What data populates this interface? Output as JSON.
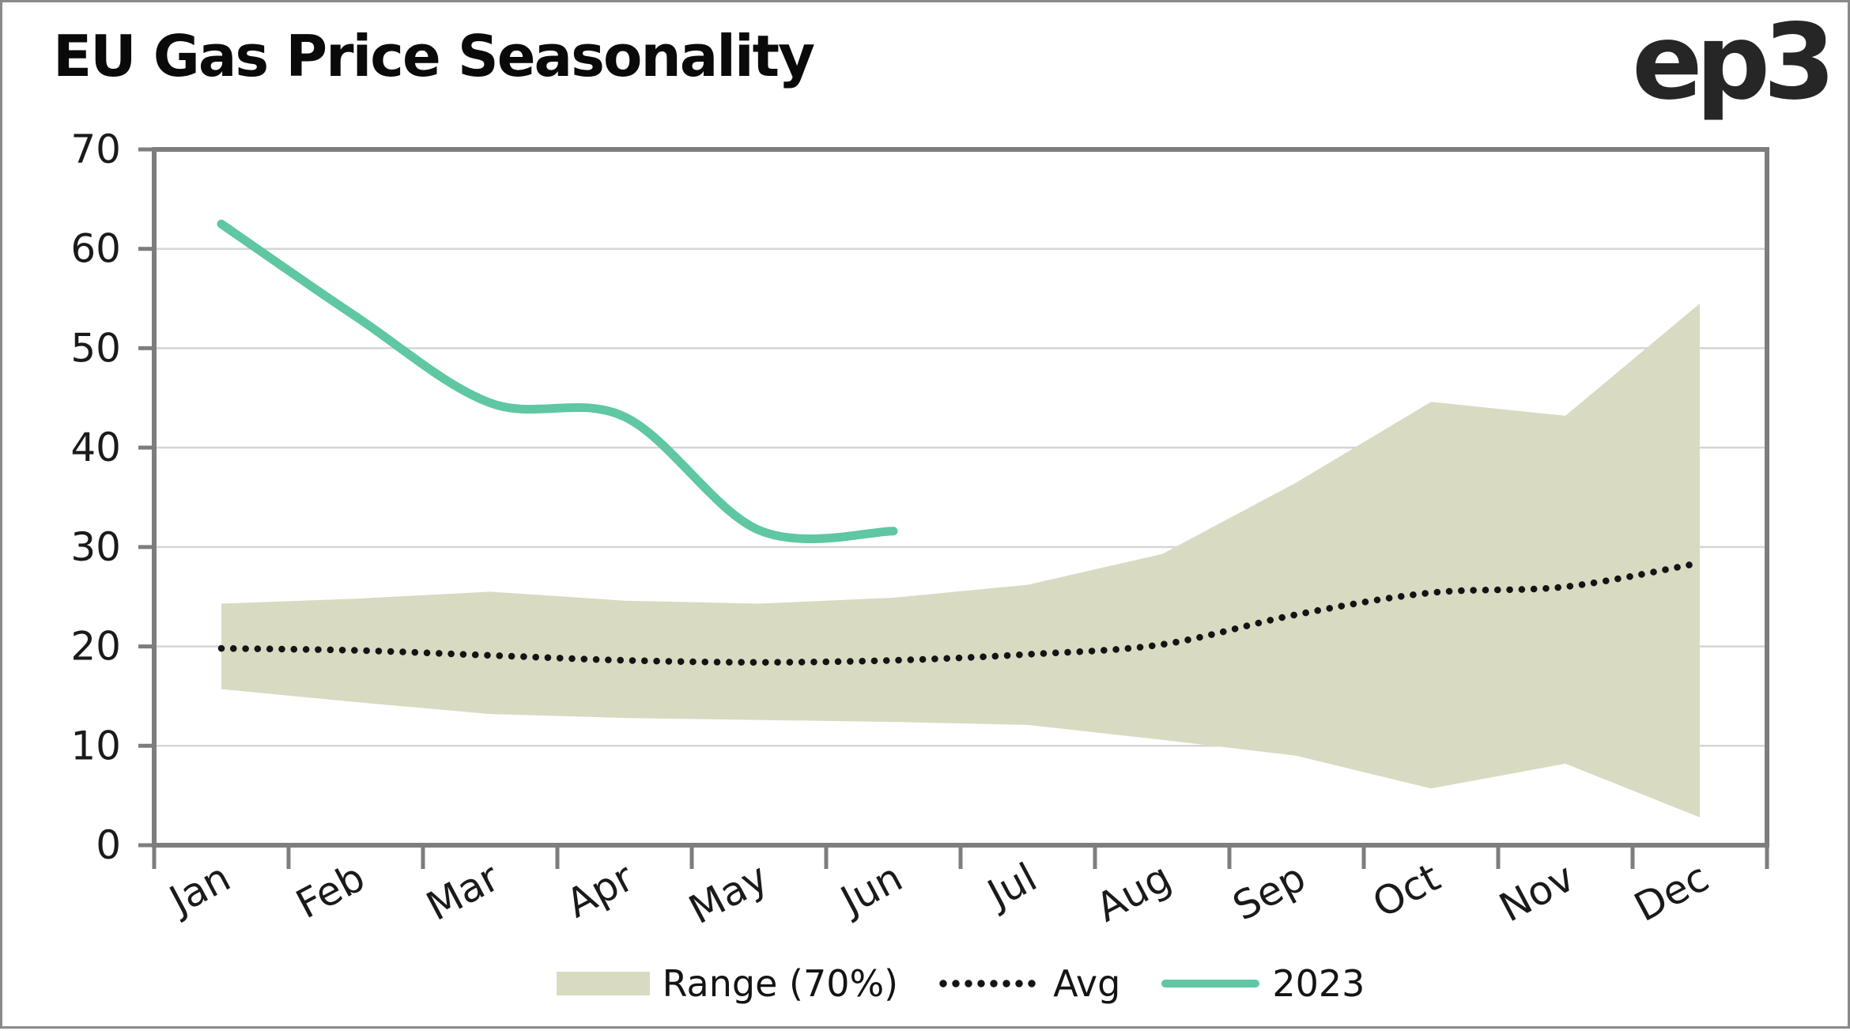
{
  "header": {
    "title": "EU Gas Price Seasonality",
    "logo_text": "ep3"
  },
  "legend": {
    "range_label": "Range (70%)",
    "avg_label": "Avg",
    "y2023_label": "2023"
  },
  "colors": {
    "band": "#d8dbc2",
    "line_2023": "#5fc7a2",
    "avg_dots": "#141414",
    "frame": "#7d7d7d",
    "gridline": "#d5d5d5",
    "axis_text": "#1a1a1a"
  },
  "chart_data": {
    "type": "area",
    "title": "EU Gas Price Seasonality",
    "categories": [
      "Jan",
      "Feb",
      "Mar",
      "Apr",
      "May",
      "Jun",
      "Jul",
      "Aug",
      "Sep",
      "Oct",
      "Nov",
      "Dec"
    ],
    "series": [
      {
        "name": "Range (70%) upper",
        "values": [
          24.3,
          24.8,
          25.5,
          24.6,
          24.3,
          24.9,
          26.2,
          29.3,
          36.5,
          44.6,
          43.2,
          54.5
        ]
      },
      {
        "name": "Range (70%) lower",
        "values": [
          15.7,
          14.4,
          13.2,
          12.8,
          12.6,
          12.4,
          12.1,
          10.6,
          9.0,
          5.7,
          8.2,
          2.8
        ]
      },
      {
        "name": "Avg",
        "values": [
          19.8,
          19.6,
          19.1,
          18.6,
          18.4,
          18.6,
          19.2,
          20.2,
          23.2,
          25.4,
          26.0,
          28.4
        ]
      },
      {
        "name": "2023",
        "values": [
          62.5,
          53.2,
          44.5,
          43.1,
          31.7,
          31.6,
          null,
          null,
          null,
          null,
          null,
          null
        ]
      }
    ],
    "xlabel": "",
    "ylabel": "",
    "ylim": [
      0,
      70
    ],
    "yticks": [
      0,
      10,
      20,
      30,
      40,
      50,
      60,
      70
    ],
    "grid": "horizontal gridlines on",
    "legend_position": "bottom"
  }
}
